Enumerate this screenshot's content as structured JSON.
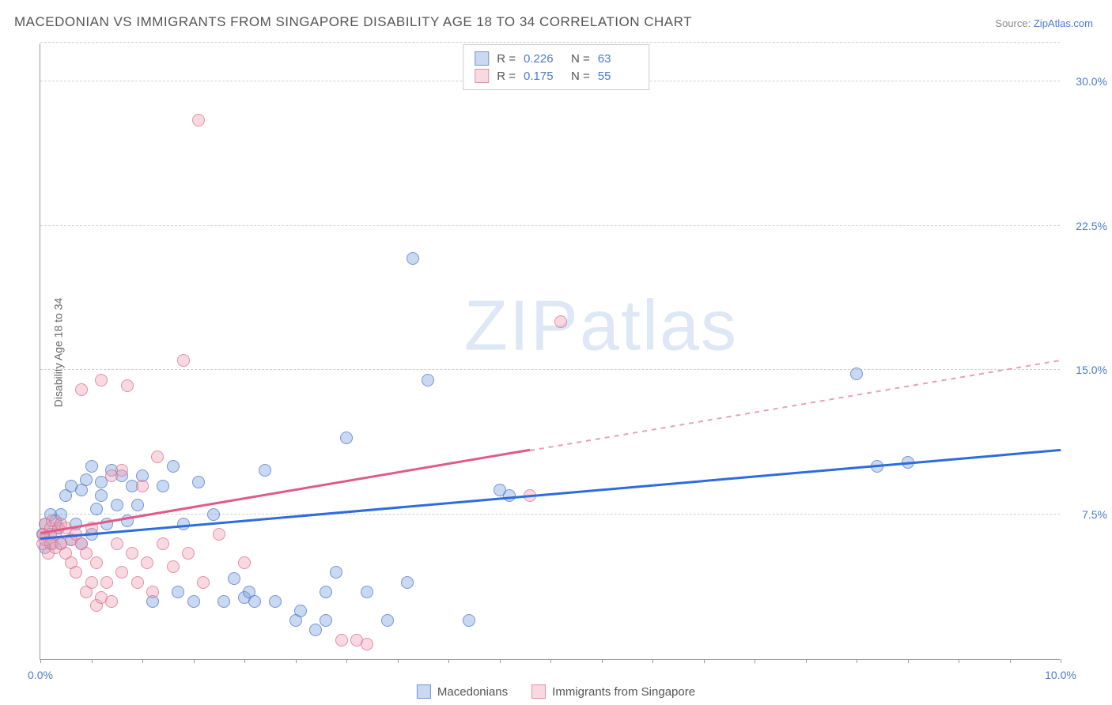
{
  "title": "MACEDONIAN VS IMMIGRANTS FROM SINGAPORE DISABILITY AGE 18 TO 34 CORRELATION CHART",
  "source_label": "Source:",
  "source_name": "ZipAtlas.com",
  "y_axis_label": "Disability Age 18 to 34",
  "watermark": {
    "part1": "ZIP",
    "part2": "atlas"
  },
  "chart": {
    "type": "scatter",
    "background_color": "#ffffff",
    "grid_color": "#d0d0d0",
    "axis_color": "#999999",
    "tick_label_color": "#4a7bd0",
    "label_color": "#666666",
    "title_color": "#555555",
    "xlim": [
      0,
      10
    ],
    "ylim": [
      0,
      32
    ],
    "x_ticks": [
      0,
      10
    ],
    "x_tick_labels": [
      "0.0%",
      "10.0%"
    ],
    "x_minor_ticks": [
      0,
      0.5,
      1.0,
      1.5,
      2.0,
      2.5,
      3.0,
      3.5,
      4.0,
      4.5,
      5.0,
      5.5,
      6.0,
      6.5,
      7.0,
      7.5,
      8.0,
      8.5,
      9.0,
      9.5,
      10.0
    ],
    "y_ticks": [
      7.5,
      15.0,
      22.5,
      30.0
    ],
    "y_tick_labels": [
      "7.5%",
      "15.0%",
      "22.5%",
      "30.0%"
    ],
    "marker_radius": 8,
    "series": [
      {
        "name": "Macedonians",
        "color_fill": "rgba(120,160,220,0.4)",
        "color_stroke": "rgba(80,120,200,0.7)",
        "R": "0.226",
        "N": "63",
        "trend": {
          "color": "#2d6cdf",
          "y_at_x0": 6.2,
          "y_at_x10": 10.8,
          "solid_until_x": 10.0
        },
        "points": [
          [
            0.02,
            6.5
          ],
          [
            0.05,
            7.0
          ],
          [
            0.05,
            5.8
          ],
          [
            0.1,
            6.5
          ],
          [
            0.1,
            7.5
          ],
          [
            0.12,
            6.0
          ],
          [
            0.15,
            7.2
          ],
          [
            0.18,
            6.8
          ],
          [
            0.2,
            6.0
          ],
          [
            0.2,
            7.5
          ],
          [
            0.25,
            8.5
          ],
          [
            0.3,
            6.2
          ],
          [
            0.3,
            9.0
          ],
          [
            0.35,
            7.0
          ],
          [
            0.4,
            8.8
          ],
          [
            0.4,
            6.0
          ],
          [
            0.45,
            9.3
          ],
          [
            0.5,
            10.0
          ],
          [
            0.5,
            6.5
          ],
          [
            0.55,
            7.8
          ],
          [
            0.6,
            9.2
          ],
          [
            0.6,
            8.5
          ],
          [
            0.65,
            7.0
          ],
          [
            0.7,
            9.8
          ],
          [
            0.75,
            8.0
          ],
          [
            0.8,
            9.5
          ],
          [
            0.85,
            7.2
          ],
          [
            0.9,
            9.0
          ],
          [
            0.95,
            8.0
          ],
          [
            1.0,
            9.5
          ],
          [
            1.1,
            3.0
          ],
          [
            1.2,
            9.0
          ],
          [
            1.3,
            10.0
          ],
          [
            1.35,
            3.5
          ],
          [
            1.4,
            7.0
          ],
          [
            1.5,
            3.0
          ],
          [
            1.55,
            9.2
          ],
          [
            1.7,
            7.5
          ],
          [
            1.8,
            3.0
          ],
          [
            1.9,
            4.2
          ],
          [
            2.0,
            3.2
          ],
          [
            2.05,
            3.5
          ],
          [
            2.1,
            3.0
          ],
          [
            2.2,
            9.8
          ],
          [
            2.3,
            3.0
          ],
          [
            2.5,
            2.0
          ],
          [
            2.55,
            2.5
          ],
          [
            2.7,
            1.5
          ],
          [
            2.8,
            3.5
          ],
          [
            2.8,
            2.0
          ],
          [
            2.9,
            4.5
          ],
          [
            3.0,
            11.5
          ],
          [
            3.2,
            3.5
          ],
          [
            3.4,
            2.0
          ],
          [
            3.6,
            4.0
          ],
          [
            3.65,
            20.8
          ],
          [
            3.8,
            14.5
          ],
          [
            4.2,
            2.0
          ],
          [
            4.5,
            8.8
          ],
          [
            4.6,
            8.5
          ],
          [
            8.0,
            14.8
          ],
          [
            8.2,
            10.0
          ],
          [
            8.5,
            10.2
          ]
        ]
      },
      {
        "name": "Immigrants from Singapore",
        "color_fill": "rgba(240,160,180,0.4)",
        "color_stroke": "rgba(220,110,140,0.7)",
        "R": "0.175",
        "N": "55",
        "trend": {
          "color": "#e05a8a",
          "y_at_x0": 6.5,
          "y_at_x10": 15.5,
          "solid_until_x": 4.8
        },
        "points": [
          [
            0.02,
            6.0
          ],
          [
            0.03,
            6.5
          ],
          [
            0.05,
            6.2
          ],
          [
            0.05,
            7.0
          ],
          [
            0.08,
            5.5
          ],
          [
            0.1,
            6.8
          ],
          [
            0.1,
            6.0
          ],
          [
            0.12,
            7.2
          ],
          [
            0.15,
            6.5
          ],
          [
            0.15,
            5.8
          ],
          [
            0.18,
            6.8
          ],
          [
            0.2,
            6.0
          ],
          [
            0.2,
            7.0
          ],
          [
            0.25,
            5.5
          ],
          [
            0.25,
            6.8
          ],
          [
            0.3,
            6.2
          ],
          [
            0.3,
            5.0
          ],
          [
            0.35,
            6.5
          ],
          [
            0.35,
            4.5
          ],
          [
            0.4,
            6.0
          ],
          [
            0.4,
            14.0
          ],
          [
            0.45,
            5.5
          ],
          [
            0.45,
            3.5
          ],
          [
            0.5,
            6.8
          ],
          [
            0.5,
            4.0
          ],
          [
            0.55,
            2.8
          ],
          [
            0.55,
            5.0
          ],
          [
            0.6,
            3.2
          ],
          [
            0.6,
            14.5
          ],
          [
            0.65,
            4.0
          ],
          [
            0.7,
            9.5
          ],
          [
            0.7,
            3.0
          ],
          [
            0.75,
            6.0
          ],
          [
            0.8,
            4.5
          ],
          [
            0.8,
            9.8
          ],
          [
            0.85,
            14.2
          ],
          [
            0.9,
            5.5
          ],
          [
            0.95,
            4.0
          ],
          [
            1.0,
            9.0
          ],
          [
            1.05,
            5.0
          ],
          [
            1.1,
            3.5
          ],
          [
            1.15,
            10.5
          ],
          [
            1.2,
            6.0
          ],
          [
            1.3,
            4.8
          ],
          [
            1.4,
            15.5
          ],
          [
            1.45,
            5.5
          ],
          [
            1.55,
            28.0
          ],
          [
            1.6,
            4.0
          ],
          [
            1.75,
            6.5
          ],
          [
            2.0,
            5.0
          ],
          [
            2.95,
            1.0
          ],
          [
            3.1,
            1.0
          ],
          [
            3.2,
            0.8
          ],
          [
            4.8,
            8.5
          ],
          [
            5.1,
            17.5
          ]
        ]
      }
    ]
  },
  "top_legend": {
    "r_label": "R =",
    "n_label": "N ="
  },
  "bottom_legend": {
    "items": [
      "Macedonians",
      "Immigrants from Singapore"
    ]
  }
}
